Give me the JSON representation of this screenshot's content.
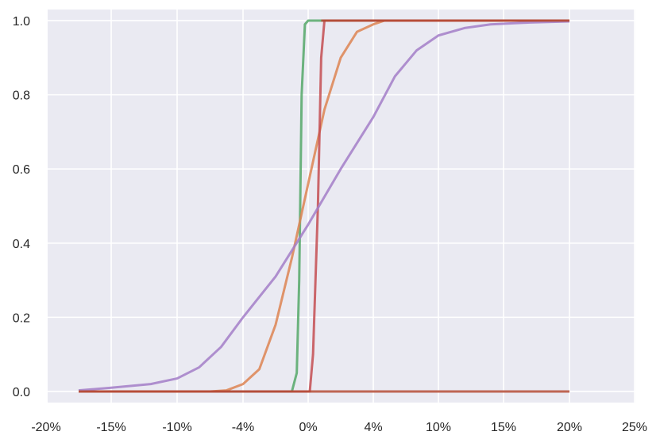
{
  "chart_data": {
    "type": "line",
    "title": "",
    "xlabel": "",
    "ylabel": "",
    "grid": true,
    "x_tick_labels": [
      "-20%",
      "-15%",
      "-10%",
      "-4%",
      "0%",
      "4%",
      "10%",
      "15%",
      "20%",
      "25%"
    ],
    "y_ticks": [
      0.0,
      0.2,
      0.4,
      0.6,
      0.8,
      1.0
    ],
    "y_tick_labels": [
      "0.0",
      "0.2",
      "0.4",
      "0.6",
      "0.8",
      "1.0"
    ],
    "ylim": [
      -0.03,
      1.03
    ],
    "colors": {
      "background": "#eaeaf2",
      "grid": "#ffffff",
      "text": "#262626"
    },
    "series": [
      {
        "color": "#55a868",
        "points": [
          [
            -17.5,
            0
          ],
          [
            -1.0,
            0
          ],
          [
            -0.7,
            0.05
          ],
          [
            -0.55,
            0.3
          ],
          [
            -0.4,
            0.8
          ],
          [
            -0.2,
            0.99
          ],
          [
            0.0,
            1
          ],
          [
            20,
            1
          ]
        ]
      },
      {
        "color": "#dd8452",
        "points": [
          [
            -17.5,
            0
          ],
          [
            -7,
            0
          ],
          [
            -5.5,
            0.003
          ],
          [
            -4,
            0.02
          ],
          [
            -3,
            0.06
          ],
          [
            -2,
            0.18
          ],
          [
            -1,
            0.36
          ],
          [
            0,
            0.56
          ],
          [
            1,
            0.76
          ],
          [
            2,
            0.9
          ],
          [
            3,
            0.97
          ],
          [
            4,
            0.99
          ],
          [
            5,
            1
          ],
          [
            20,
            1
          ]
        ]
      },
      {
        "color": "#c44e52",
        "points": [
          [
            -17.5,
            0
          ],
          [
            0.1,
            0
          ],
          [
            0.3,
            0.1
          ],
          [
            0.6,
            0.5
          ],
          [
            0.8,
            0.9
          ],
          [
            1.0,
            1
          ],
          [
            20,
            1
          ]
        ]
      },
      {
        "color": "#a37ec8",
        "points": [
          [
            -17.5,
            0.003
          ],
          [
            -15,
            0.01
          ],
          [
            -12,
            0.02
          ],
          [
            -10,
            0.035
          ],
          [
            -8,
            0.065
          ],
          [
            -6,
            0.12
          ],
          [
            -4,
            0.2
          ],
          [
            -2,
            0.31
          ],
          [
            0,
            0.45
          ],
          [
            2,
            0.6
          ],
          [
            4,
            0.74
          ],
          [
            6,
            0.85
          ],
          [
            8,
            0.92
          ],
          [
            10,
            0.96
          ],
          [
            12,
            0.98
          ],
          [
            14,
            0.99
          ],
          [
            17,
            0.995
          ],
          [
            20,
            0.998
          ]
        ]
      },
      {
        "color": "#b44b35",
        "points": [
          [
            -17.5,
            0
          ],
          [
            20,
            0
          ],
          [
            20,
            1
          ],
          [
            0.8,
            1
          ]
        ],
        "render": "top-bottom-rails"
      }
    ]
  }
}
